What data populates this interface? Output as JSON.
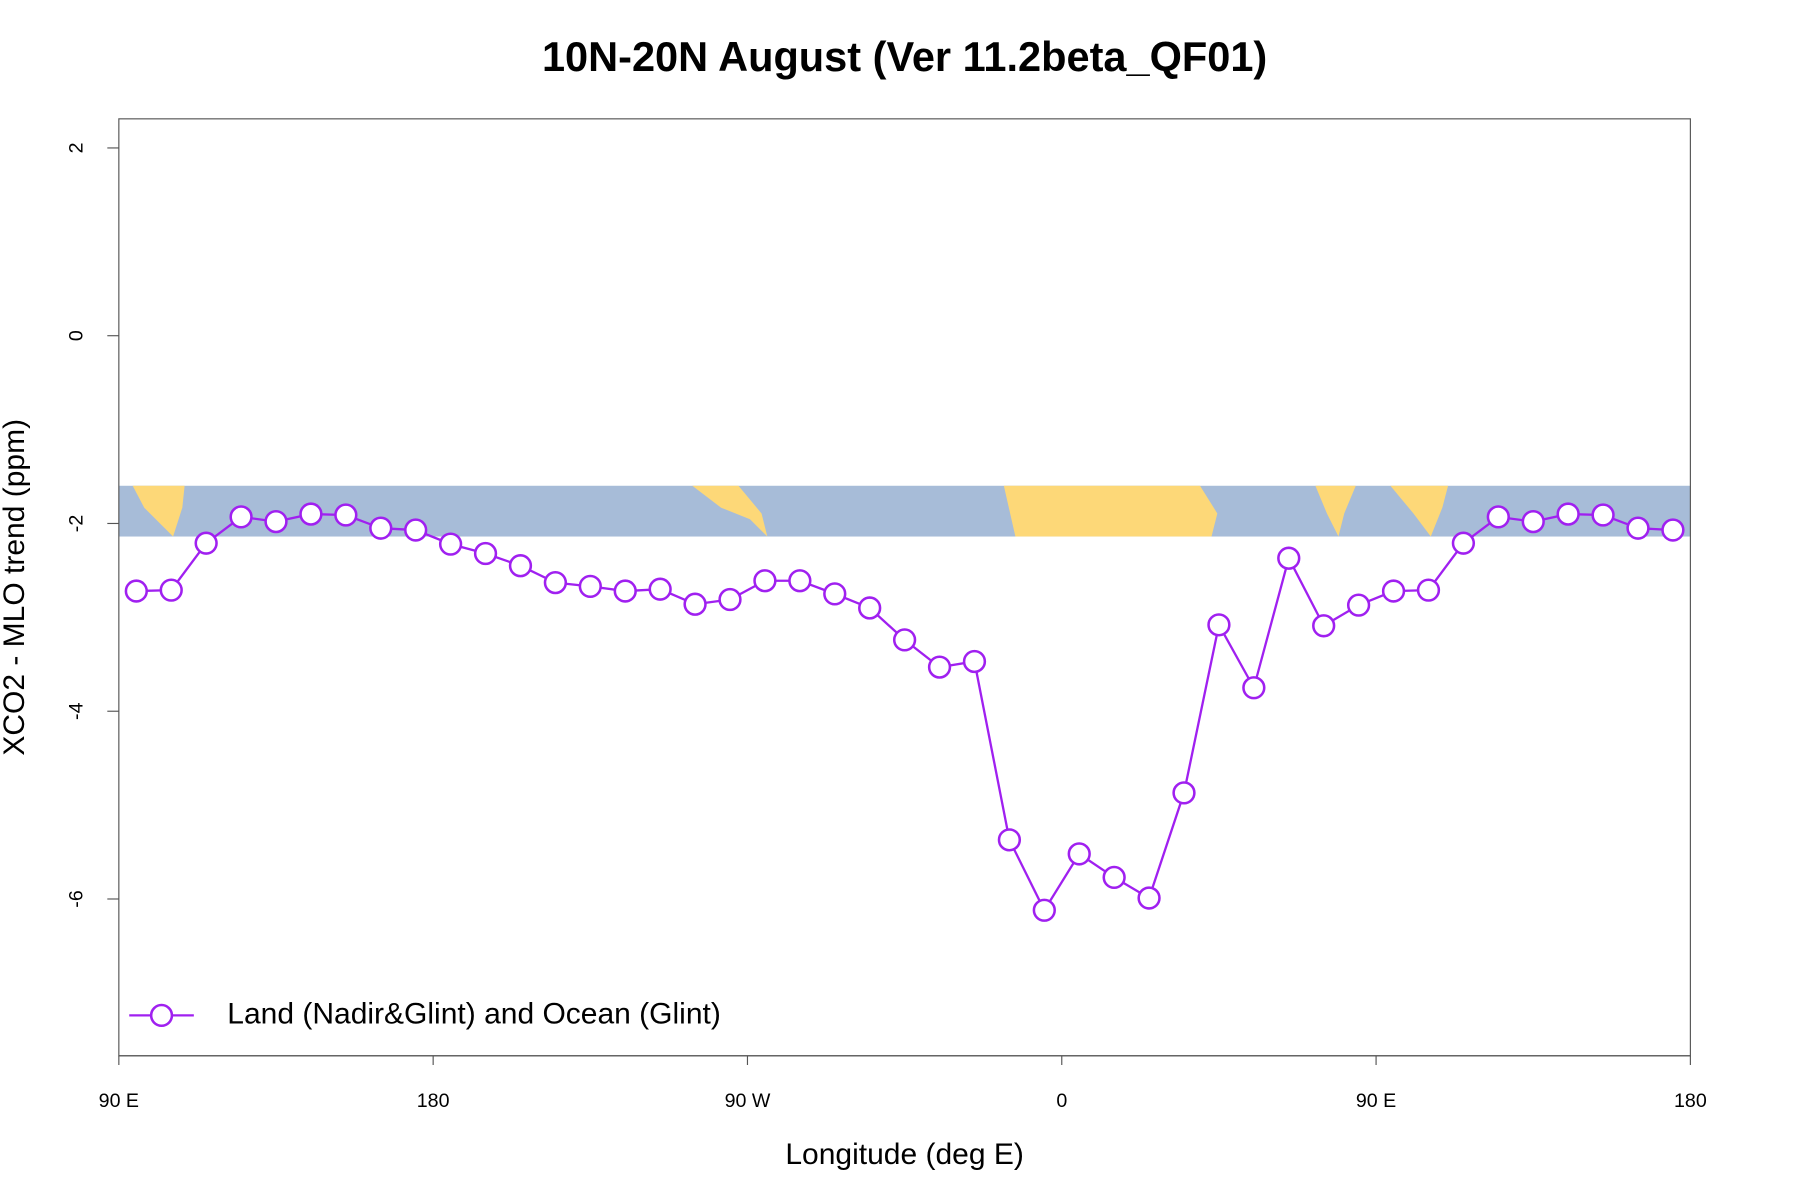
{
  "chart_data": {
    "type": "line",
    "title": "10N-20N August (Ver 11.2beta_QF01)",
    "x_label": "Longitude (deg E)",
    "y_label": "XCO2 - MLO trend (ppm)",
    "xlim": [
      90,
      540
    ],
    "ylim": [
      -7.67,
      2.31
    ],
    "xticks": [
      {
        "value": 90,
        "label": "90 E"
      },
      180,
      {
        "value": 270,
        "label": "90 W"
      },
      {
        "value": 360,
        "label": "0"
      },
      {
        "value": 450,
        "label": "90 E"
      },
      {
        "value": 540,
        "label": "180"
      }
    ],
    "yticks": [
      -6,
      -4,
      -2,
      0,
      2
    ],
    "legend": "bottomleft",
    "x": [
      95,
      105,
      115,
      125,
      135,
      145,
      155,
      165,
      175,
      185,
      195,
      205,
      215,
      225,
      235,
      245,
      255,
      265,
      275,
      285,
      295,
      305,
      315,
      325,
      335,
      345,
      355,
      365,
      375,
      385,
      395,
      405,
      415,
      425,
      435,
      445,
      455,
      465,
      475,
      485,
      495,
      505,
      515,
      525,
      535
    ],
    "series": [
      {
        "name": "Land (Nadir&Glint) and Ocean (Glint)",
        "color": "#a020f0",
        "values": [
          -2.72,
          -2.71,
          -2.21,
          -1.93,
          -1.98,
          -1.9,
          -1.91,
          -2.05,
          -2.07,
          -2.22,
          -2.32,
          -2.45,
          -2.63,
          -2.67,
          -2.72,
          -2.7,
          -2.86,
          -2.81,
          -2.61,
          -2.61,
          -2.75,
          -2.9,
          -3.24,
          -3.53,
          -3.47,
          -5.37,
          -6.12,
          -5.52,
          -5.77,
          -5.99,
          -4.87,
          -3.08,
          -3.75,
          -2.37,
          -3.09,
          -2.87,
          -2.72,
          -2.71,
          -2.21,
          -1.93,
          -1.98,
          -1.9,
          -1.91,
          -2.05,
          -2.07
        ]
      }
    ]
  }
}
